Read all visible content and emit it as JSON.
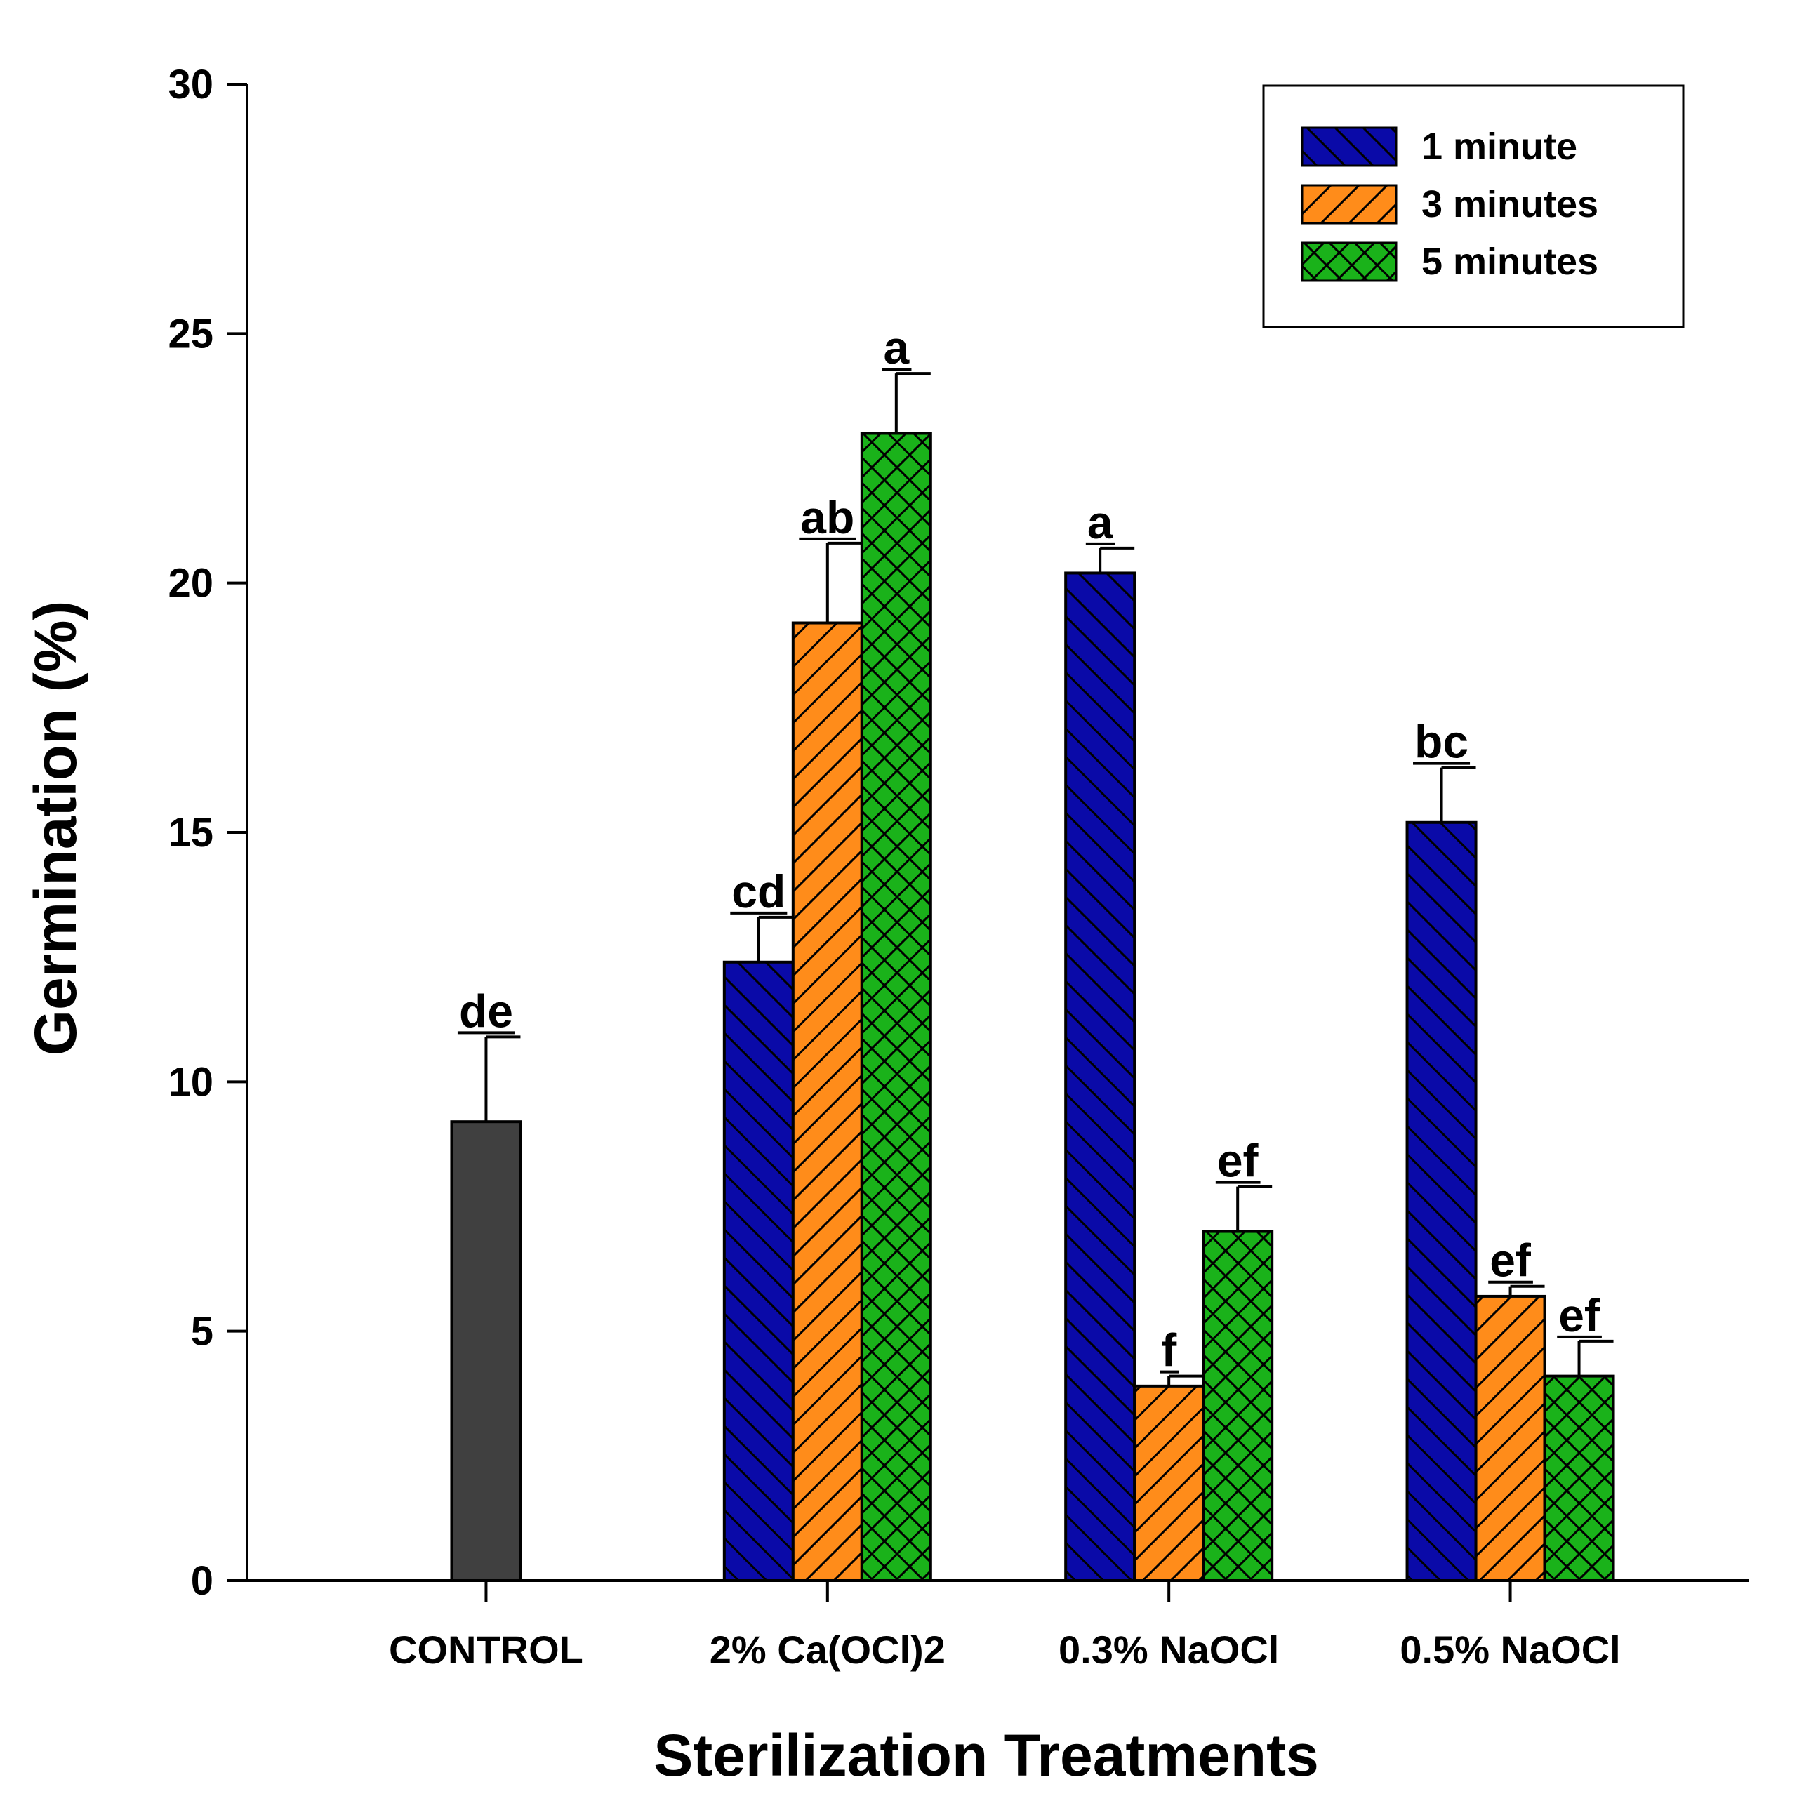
{
  "chart_data": {
    "type": "bar",
    "xlabel": "Sterilization Treatments",
    "ylabel": "Germination (%)",
    "ylim": [
      0,
      30
    ],
    "yticks": [
      0,
      5,
      10,
      15,
      20,
      25,
      30
    ],
    "grid": false,
    "legend_position": "top-right",
    "groups": [
      {
        "category": "CONTROL",
        "bars": [
          {
            "series": "control",
            "value": 9.2,
            "error": 1.7,
            "letter": "de"
          }
        ]
      },
      {
        "category": "2% Ca(OCl)2",
        "bars": [
          {
            "series": "1 minute",
            "value": 12.4,
            "error": 0.9,
            "letter": "cd"
          },
          {
            "series": "3 minutes",
            "value": 19.2,
            "error": 1.6,
            "letter": "ab"
          },
          {
            "series": "5 minutes",
            "value": 23.0,
            "error": 1.2,
            "letter": "a"
          }
        ]
      },
      {
        "category": "0.3% NaOCl",
        "bars": [
          {
            "series": "1 minute",
            "value": 20.2,
            "error": 0.5,
            "letter": "a"
          },
          {
            "series": "3 minutes",
            "value": 3.9,
            "error": 0.2,
            "letter": "f"
          },
          {
            "series": "5 minutes",
            "value": 7.0,
            "error": 0.9,
            "letter": "ef"
          }
        ]
      },
      {
        "category": "0.5% NaOCl",
        "bars": [
          {
            "series": "1 minute",
            "value": 15.2,
            "error": 1.1,
            "letter": "bc"
          },
          {
            "series": "3 minutes",
            "value": 5.7,
            "error": 0.2,
            "letter": "ef"
          },
          {
            "series": "5 minutes",
            "value": 4.1,
            "error": 0.7,
            "letter": "ef"
          }
        ]
      }
    ],
    "legend": [
      {
        "series": "1 minute",
        "label": "1 minute"
      },
      {
        "series": "3 minutes",
        "label": "3 minutes"
      },
      {
        "series": "5 minutes",
        "label": "5 minutes"
      }
    ],
    "styles": {
      "control": {
        "color": "#404040",
        "pattern": "none"
      },
      "1 minute": {
        "color": "#0a0aa8",
        "pattern": "backslash"
      },
      "3 minutes": {
        "color": "#ff8c1a",
        "pattern": "slash"
      },
      "5 minutes": {
        "color": "#1ab21a",
        "pattern": "crosshatch"
      }
    }
  }
}
